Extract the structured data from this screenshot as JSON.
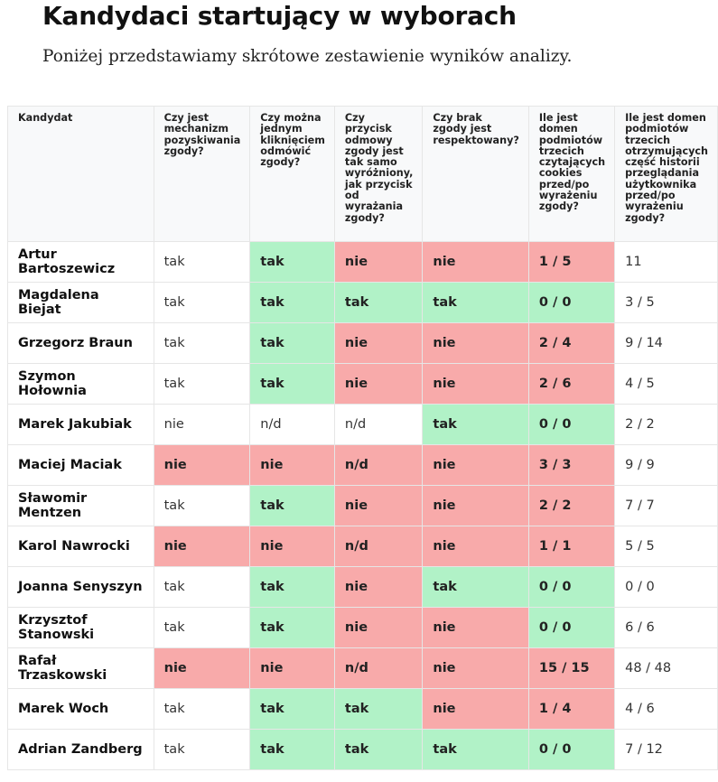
{
  "title": "Kandydaci startujący w wyborach",
  "subtitle": "Poniżej przedstawiamy skrótowe zestawienie wyników analizy.",
  "colors": {
    "green": "#b1f2c7",
    "red": "#f8aaaa",
    "header_bg": "#f8f9fa"
  },
  "columns": [
    "Kandydat",
    "Czy jest mechanizm pozyskiwania zgody?",
    "Czy można jednym kliknięciem odmówić zgody?",
    "Czy przycisk odmowy zgody jest tak samo wyróżniony, jak przycisk od wyrażania zgody?",
    "Czy brak zgody jest respektowany?",
    "Ile jest domen podmiotów trzecich czytających cookies przed/po wyrażeniu zgody?",
    "Ile jest domen podmiotów trzecich otrzymujących część historii przeglądania użytkownika przed/po wyrażeniu zgody?"
  ],
  "rows": [
    {
      "name": "Artur Bartoszewicz",
      "cells": [
        {
          "v": "tak",
          "s": "plain"
        },
        {
          "v": "tak",
          "s": "green"
        },
        {
          "v": "nie",
          "s": "red"
        },
        {
          "v": "nie",
          "s": "red"
        },
        {
          "v": "1 / 5",
          "s": "red"
        },
        {
          "v": "11",
          "s": "plain"
        }
      ]
    },
    {
      "name": "Magdalena Biejat",
      "cells": [
        {
          "v": "tak",
          "s": "plain"
        },
        {
          "v": "tak",
          "s": "green"
        },
        {
          "v": "tak",
          "s": "green"
        },
        {
          "v": "tak",
          "s": "green"
        },
        {
          "v": "0 / 0",
          "s": "green"
        },
        {
          "v": "3 / 5",
          "s": "plain"
        }
      ]
    },
    {
      "name": "Grzegorz Braun",
      "cells": [
        {
          "v": "tak",
          "s": "plain"
        },
        {
          "v": "tak",
          "s": "green"
        },
        {
          "v": "nie",
          "s": "red"
        },
        {
          "v": "nie",
          "s": "red"
        },
        {
          "v": "2 / 4",
          "s": "red"
        },
        {
          "v": "9 / 14",
          "s": "plain"
        }
      ]
    },
    {
      "name": "Szymon Hołownia",
      "cells": [
        {
          "v": "tak",
          "s": "plain"
        },
        {
          "v": "tak",
          "s": "green"
        },
        {
          "v": "nie",
          "s": "red"
        },
        {
          "v": "nie",
          "s": "red"
        },
        {
          "v": "2 / 6",
          "s": "red"
        },
        {
          "v": "4 / 5",
          "s": "plain"
        }
      ]
    },
    {
      "name": "Marek Jakubiak",
      "cells": [
        {
          "v": "nie",
          "s": "plain"
        },
        {
          "v": "n/d",
          "s": "plain"
        },
        {
          "v": "n/d",
          "s": "plain"
        },
        {
          "v": "tak",
          "s": "green"
        },
        {
          "v": "0 / 0",
          "s": "green"
        },
        {
          "v": "2 / 2",
          "s": "plain"
        }
      ]
    },
    {
      "name": "Maciej Maciak",
      "cells": [
        {
          "v": "nie",
          "s": "red"
        },
        {
          "v": "nie",
          "s": "red"
        },
        {
          "v": "n/d",
          "s": "red"
        },
        {
          "v": "nie",
          "s": "red"
        },
        {
          "v": "3 / 3",
          "s": "red"
        },
        {
          "v": "9 / 9",
          "s": "plain"
        }
      ]
    },
    {
      "name": "Sławomir Mentzen",
      "cells": [
        {
          "v": "tak",
          "s": "plain"
        },
        {
          "v": "tak",
          "s": "green"
        },
        {
          "v": "nie",
          "s": "red"
        },
        {
          "v": "nie",
          "s": "red"
        },
        {
          "v": "2 / 2",
          "s": "red"
        },
        {
          "v": "7 / 7",
          "s": "plain"
        }
      ]
    },
    {
      "name": "Karol Nawrocki",
      "cells": [
        {
          "v": "nie",
          "s": "red"
        },
        {
          "v": "nie",
          "s": "red"
        },
        {
          "v": "n/d",
          "s": "red"
        },
        {
          "v": "nie",
          "s": "red"
        },
        {
          "v": "1 / 1",
          "s": "red"
        },
        {
          "v": "5 / 5",
          "s": "plain"
        }
      ]
    },
    {
      "name": "Joanna Senyszyn",
      "cells": [
        {
          "v": "tak",
          "s": "plain"
        },
        {
          "v": "tak",
          "s": "green"
        },
        {
          "v": "nie",
          "s": "red"
        },
        {
          "v": "tak",
          "s": "green"
        },
        {
          "v": "0 / 0",
          "s": "green"
        },
        {
          "v": "0 / 0",
          "s": "plain"
        }
      ]
    },
    {
      "name": "Krzysztof Stanowski",
      "cells": [
        {
          "v": "tak",
          "s": "plain"
        },
        {
          "v": "tak",
          "s": "green"
        },
        {
          "v": "nie",
          "s": "red"
        },
        {
          "v": "nie",
          "s": "red"
        },
        {
          "v": "0 / 0",
          "s": "green"
        },
        {
          "v": "6 / 6",
          "s": "plain"
        }
      ]
    },
    {
      "name": "Rafał Trzaskowski",
      "cells": [
        {
          "v": "nie",
          "s": "red"
        },
        {
          "v": "nie",
          "s": "red"
        },
        {
          "v": "n/d",
          "s": "red"
        },
        {
          "v": "nie",
          "s": "red"
        },
        {
          "v": "15 / 15",
          "s": "red"
        },
        {
          "v": "48 / 48",
          "s": "plain"
        }
      ]
    },
    {
      "name": "Marek Woch",
      "cells": [
        {
          "v": "tak",
          "s": "plain"
        },
        {
          "v": "tak",
          "s": "green"
        },
        {
          "v": "tak",
          "s": "green"
        },
        {
          "v": "nie",
          "s": "red"
        },
        {
          "v": "1 / 4",
          "s": "red"
        },
        {
          "v": "4 / 6",
          "s": "plain"
        }
      ]
    },
    {
      "name": "Adrian Zandberg",
      "cells": [
        {
          "v": "tak",
          "s": "plain"
        },
        {
          "v": "tak",
          "s": "green"
        },
        {
          "v": "tak",
          "s": "green"
        },
        {
          "v": "tak",
          "s": "green"
        },
        {
          "v": "0 / 0",
          "s": "green"
        },
        {
          "v": "7 / 12",
          "s": "plain"
        }
      ]
    }
  ]
}
